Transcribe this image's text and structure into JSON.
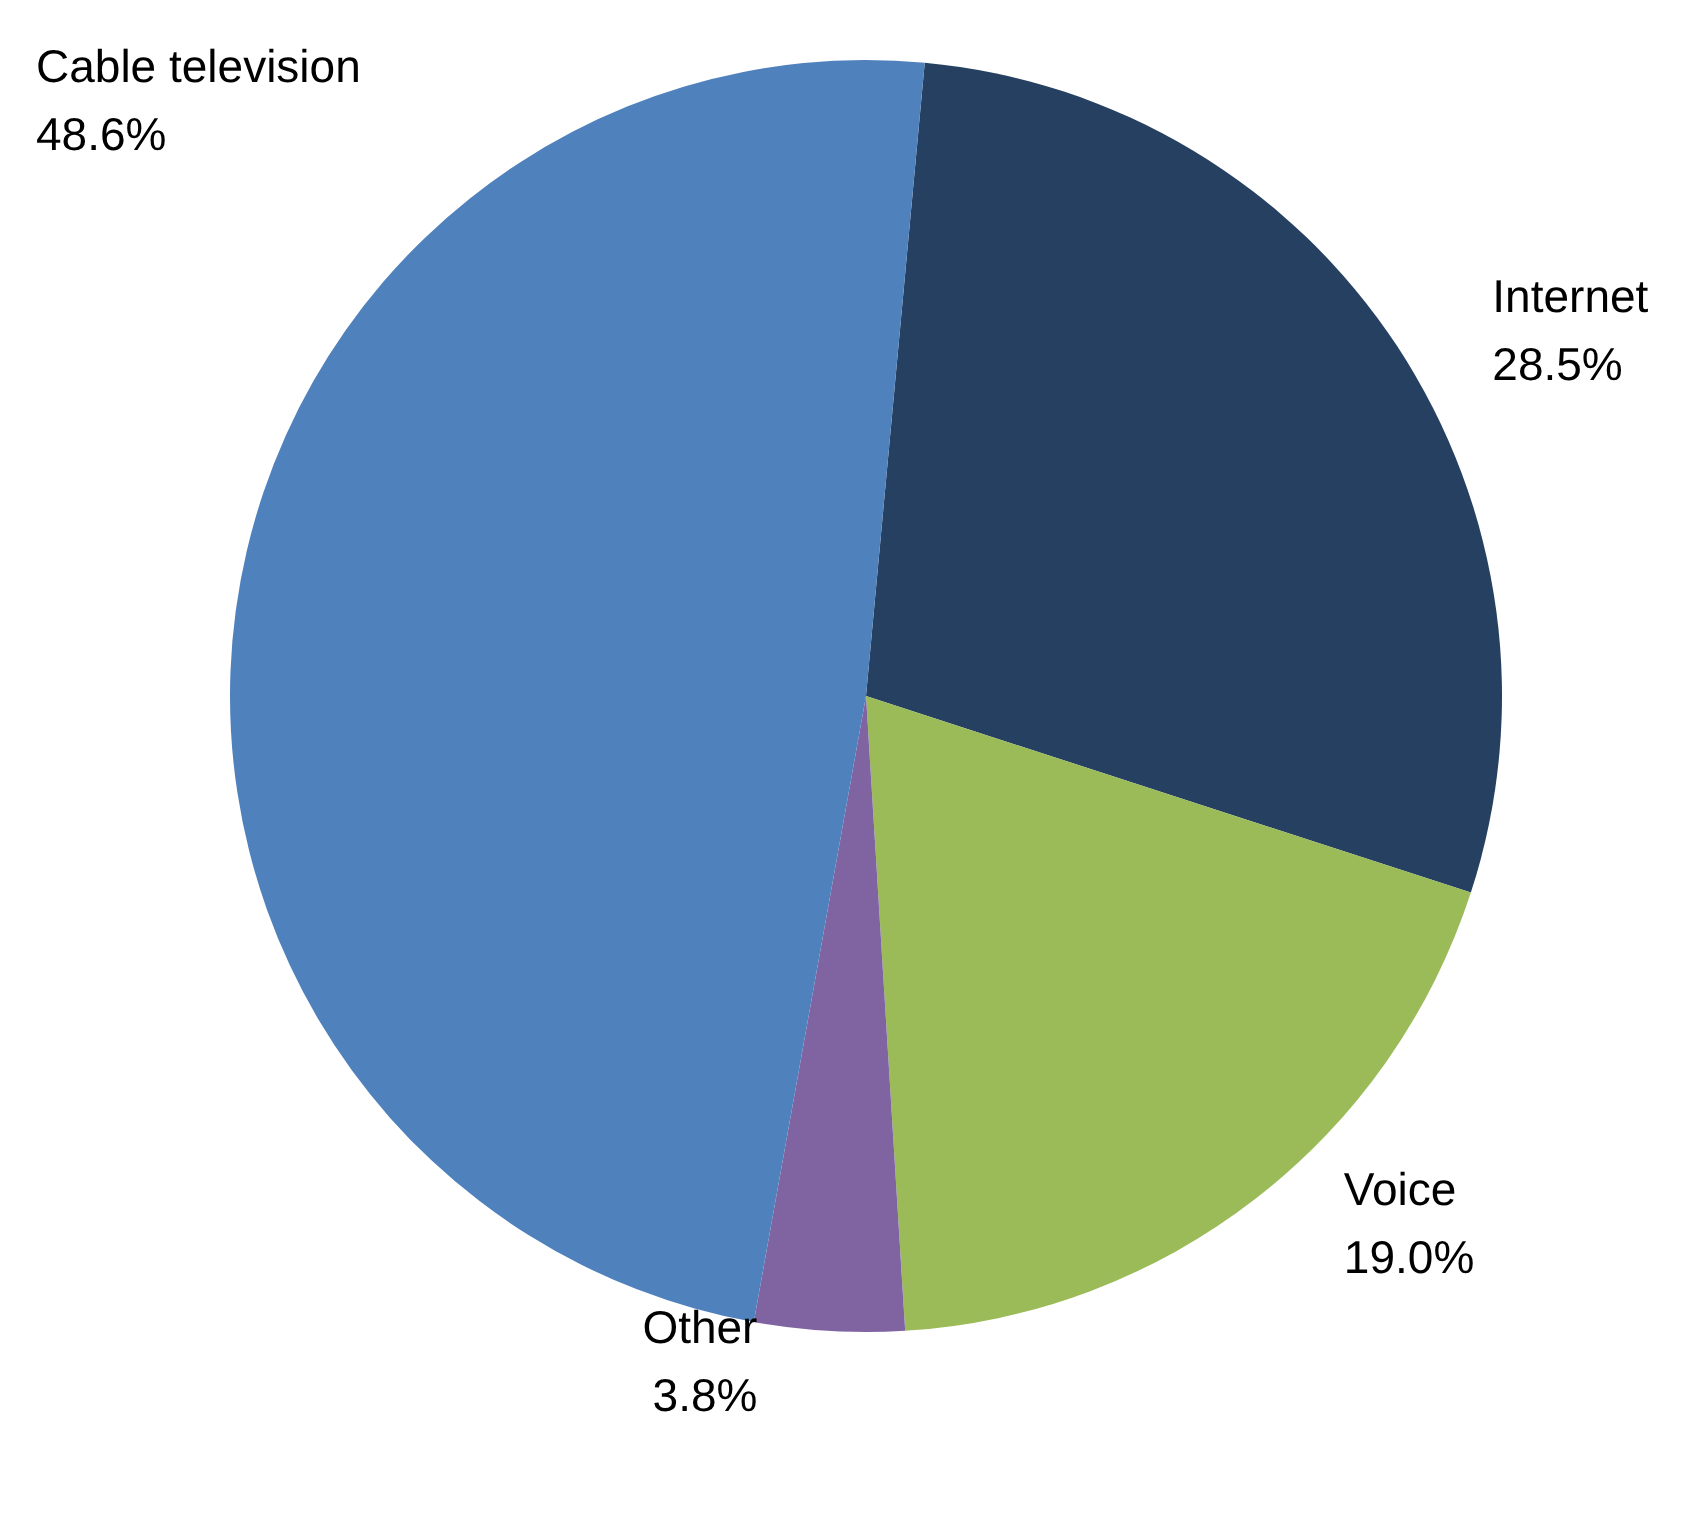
{
  "chart_data": {
    "type": "pie",
    "categories": [
      "Internet",
      "Voice",
      "Other",
      "Cable television"
    ],
    "values": [
      28.5,
      19.0,
      3.8,
      48.6
    ],
    "colors": [
      "#264061",
      "#9bbb59",
      "#8064a2",
      "#4f81bd"
    ],
    "value_labels": [
      "28.5%",
      "19.0%",
      "3.8%",
      "48.6%"
    ],
    "legend": false
  }
}
